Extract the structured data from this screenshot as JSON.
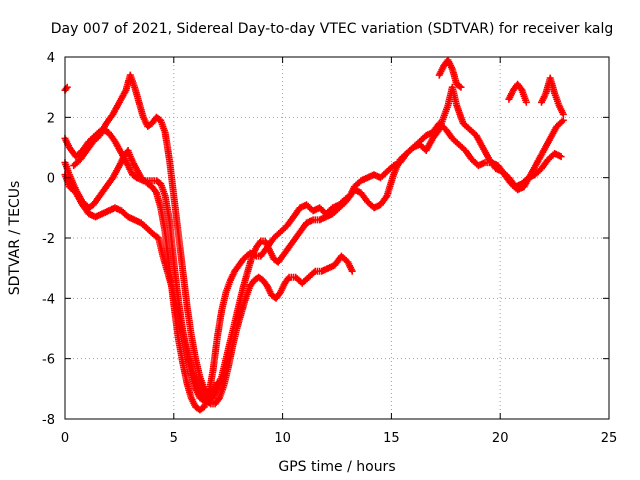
{
  "chart_data": {
    "type": "scatter",
    "title": "Day 007 of 2021, Sidereal Day-to-day VTEC variation (SDTVAR) for receiver kalg",
    "xlabel": "GPS time / hours",
    "ylabel": "SDTVAR / TECUs",
    "xlim": [
      0,
      25
    ],
    "ylim": [
      -8,
      4
    ],
    "xticks": [
      0,
      5,
      10,
      15,
      20,
      25
    ],
    "yticks": [
      -8,
      -6,
      -4,
      -2,
      0,
      2,
      4
    ],
    "xtick_labels": [
      "0",
      "5",
      "10",
      "15",
      "20",
      "25"
    ],
    "ytick_labels": [
      "-8",
      "-6",
      "-4",
      "-2",
      "0",
      "2",
      "4"
    ],
    "grid": true,
    "marker": "plus",
    "color": "#ff0000",
    "series": [
      {
        "x": [
          0.0,
          0.1
        ],
        "y": [
          2.9,
          3.0
        ]
      },
      {
        "x": [
          0.0,
          0.2,
          0.5,
          0.8,
          1.1,
          1.3,
          1.6,
          1.9,
          2.2,
          2.5,
          2.7,
          2.9,
          3.0,
          3.2,
          3.5,
          3.8,
          4.0,
          4.2,
          4.4,
          4.6,
          4.8,
          5.0,
          5.2,
          5.4,
          5.6,
          5.8,
          6.0,
          6.2,
          6.4,
          6.6,
          6.8,
          7.0,
          7.2,
          7.4,
          7.6,
          7.8,
          8.0,
          8.2,
          8.5,
          8.8,
          9.0,
          9.2,
          9.4,
          9.6,
          9.9,
          10.2,
          10.5,
          10.8,
          11.1,
          11.4,
          11.7,
          12.0,
          12.3,
          12.6,
          12.9,
          13.1,
          13.3,
          13.6,
          13.9,
          14.2,
          14.5,
          14.8,
          15.1,
          15.4,
          15.7,
          16.0,
          16.3,
          16.6,
          16.9,
          17.2,
          17.4,
          17.6,
          17.8,
          18.0,
          18.3,
          18.6,
          18.9,
          19.2,
          19.5,
          19.8,
          20.1,
          20.4,
          20.7,
          21.0,
          21.3,
          21.6,
          21.9,
          22.2,
          22.5,
          22.8
        ],
        "y": [
          0.5,
          0.1,
          -0.4,
          -0.8,
          -1.0,
          -0.9,
          -0.6,
          -0.3,
          0.0,
          0.4,
          0.7,
          0.9,
          0.7,
          0.4,
          0.0,
          -0.2,
          -0.3,
          -0.5,
          -1.0,
          -1.8,
          -3.0,
          -4.2,
          -5.3,
          -6.1,
          -6.8,
          -7.3,
          -7.6,
          -7.7,
          -7.6,
          -7.2,
          -6.4,
          -5.3,
          -4.4,
          -3.8,
          -3.4,
          -3.1,
          -2.9,
          -2.7,
          -2.5,
          -2.6,
          -2.6,
          -2.4,
          -2.2,
          -2.0,
          -1.8,
          -1.6,
          -1.3,
          -1.0,
          -0.9,
          -1.1,
          -1.0,
          -1.2,
          -1.0,
          -0.9,
          -0.7,
          -0.6,
          -0.3,
          -0.1,
          0.0,
          0.1,
          0.0,
          0.2,
          0.4,
          0.5,
          0.8,
          1.0,
          1.1,
          0.9,
          1.3,
          1.6,
          2.0,
          2.4,
          3.0,
          2.4,
          1.8,
          1.6,
          1.4,
          1.0,
          0.6,
          0.3,
          0.2,
          0.0,
          -0.3,
          -0.2,
          0.0,
          0.1,
          0.3,
          0.6,
          0.8,
          0.7
        ]
      },
      {
        "x": [
          0.0,
          0.2,
          0.5,
          0.8,
          1.1,
          1.4,
          1.7,
          2.0,
          2.3,
          2.6,
          2.9,
          3.1,
          3.3,
          3.6,
          3.9,
          4.2,
          4.4,
          4.6,
          4.8,
          5.0,
          5.2,
          5.4,
          5.6,
          5.8,
          6.0,
          6.2,
          6.4,
          6.6,
          6.8,
          7.0,
          7.2,
          7.4,
          7.6,
          7.8,
          8.0,
          8.2,
          8.4,
          8.6,
          8.8,
          9.0,
          9.2,
          9.4,
          9.6,
          9.8,
          10.0,
          10.2,
          10.5,
          10.8,
          11.1,
          11.4,
          11.7,
          12.0,
          12.3,
          12.6,
          12.9,
          13.1,
          13.3,
          13.6,
          13.9,
          14.2,
          14.5,
          14.8,
          15.1,
          15.4,
          15.7,
          16.0,
          16.3,
          16.6,
          16.9,
          17.2,
          17.5,
          17.8,
          18.1,
          18.4,
          18.7,
          19.0,
          19.3,
          19.6,
          19.9,
          20.2,
          20.5,
          20.8,
          21.1,
          21.4,
          21.7,
          22.0,
          22.3,
          22.6,
          22.9
        ],
        "y": [
          1.3,
          1.0,
          0.7,
          0.9,
          1.2,
          1.4,
          1.6,
          1.5,
          1.2,
          0.8,
          0.4,
          0.1,
          0.0,
          -0.1,
          -0.1,
          -0.1,
          -0.2,
          -0.6,
          -1.4,
          -2.8,
          -4.0,
          -5.0,
          -5.8,
          -6.5,
          -7.0,
          -7.3,
          -7.4,
          -7.4,
          -7.3,
          -7.0,
          -6.6,
          -6.0,
          -5.4,
          -4.8,
          -4.2,
          -3.6,
          -3.1,
          -2.6,
          -2.3,
          -2.1,
          -2.1,
          -2.4,
          -2.7,
          -2.8,
          -2.6,
          -2.4,
          -2.1,
          -1.8,
          -1.5,
          -1.4,
          -1.4,
          -1.3,
          -1.2,
          -1.0,
          -0.8,
          -0.6,
          -0.4,
          -0.5,
          -0.8,
          -1.0,
          -0.9,
          -0.6,
          0.1,
          0.6,
          0.8,
          1.0,
          1.2,
          1.4,
          1.5,
          1.8,
          1.6,
          1.3,
          1.1,
          0.9,
          0.6,
          0.4,
          0.5,
          0.5,
          0.4,
          0.1,
          -0.2,
          -0.4,
          -0.3,
          0.1,
          0.5,
          0.9,
          1.3,
          1.7,
          1.9
        ]
      },
      {
        "x": [
          0.0,
          0.2,
          0.5,
          0.8,
          1.1,
          1.4,
          1.7,
          2.0,
          2.3,
          2.6,
          2.9,
          3.2,
          3.5,
          3.8,
          4.1,
          4.3,
          4.5,
          4.7,
          4.9,
          5.1,
          5.3,
          5.5,
          5.7,
          5.9,
          6.1,
          6.3,
          6.5,
          6.7,
          6.9,
          7.1,
          7.3,
          7.5,
          7.7,
          7.9,
          8.1,
          8.3,
          8.5,
          8.7,
          8.9,
          9.1,
          9.3,
          9.5,
          9.7,
          9.9,
          10.1,
          10.3,
          10.6,
          10.9,
          11.2,
          11.5,
          11.8,
          12.1,
          12.4,
          12.7,
          13.0,
          13.2
        ],
        "y": [
          0.1,
          -0.3,
          -0.5,
          -0.9,
          -1.2,
          -1.3,
          -1.2,
          -1.1,
          -1.0,
          -1.1,
          -1.3,
          -1.4,
          -1.5,
          -1.7,
          -1.9,
          -2.0,
          -2.6,
          -3.1,
          -3.6,
          -4.2,
          -4.8,
          -5.4,
          -6.0,
          -6.5,
          -6.9,
          -7.2,
          -7.4,
          -7.5,
          -7.5,
          -7.3,
          -6.9,
          -6.3,
          -5.6,
          -5.0,
          -4.5,
          -4.0,
          -3.6,
          -3.4,
          -3.3,
          -3.4,
          -3.6,
          -3.9,
          -4.0,
          -3.8,
          -3.5,
          -3.3,
          -3.3,
          -3.5,
          -3.3,
          -3.1,
          -3.1,
          -3.0,
          -2.9,
          -2.6,
          -2.8,
          -3.1
        ]
      },
      {
        "x": [
          0.4,
          0.7,
          1.0,
          1.3,
          1.6,
          1.9,
          2.2,
          2.5,
          2.8,
          3.0,
          3.2,
          3.4,
          3.6,
          3.8,
          4.0,
          4.2,
          4.4,
          4.6,
          4.8,
          5.0,
          5.2,
          5.4,
          5.6,
          5.8,
          6.0,
          6.2,
          6.4,
          6.6,
          6.8,
          7.0
        ],
        "y": [
          0.4,
          0.6,
          0.9,
          1.2,
          1.4,
          1.8,
          2.1,
          2.5,
          2.9,
          3.4,
          3.0,
          2.5,
          2.0,
          1.7,
          1.8,
          2.0,
          1.9,
          1.5,
          0.6,
          -0.6,
          -1.8,
          -3.0,
          -4.2,
          -5.2,
          -6.0,
          -6.6,
          -7.0,
          -7.2,
          -7.1,
          -6.8
        ]
      },
      {
        "x": [
          17.2,
          17.4,
          17.6,
          17.8,
          18.0,
          18.2
        ],
        "y": [
          3.4,
          3.7,
          3.9,
          3.6,
          3.1,
          3.0
        ]
      },
      {
        "x": [
          20.4,
          20.6,
          20.8,
          21.0,
          21.2
        ],
        "y": [
          2.6,
          2.9,
          3.1,
          2.9,
          2.5
        ]
      },
      {
        "x": [
          21.9,
          22.1,
          22.3,
          22.5,
          22.7,
          22.9
        ],
        "y": [
          2.5,
          2.8,
          3.3,
          2.8,
          2.4,
          2.1
        ]
      }
    ]
  }
}
